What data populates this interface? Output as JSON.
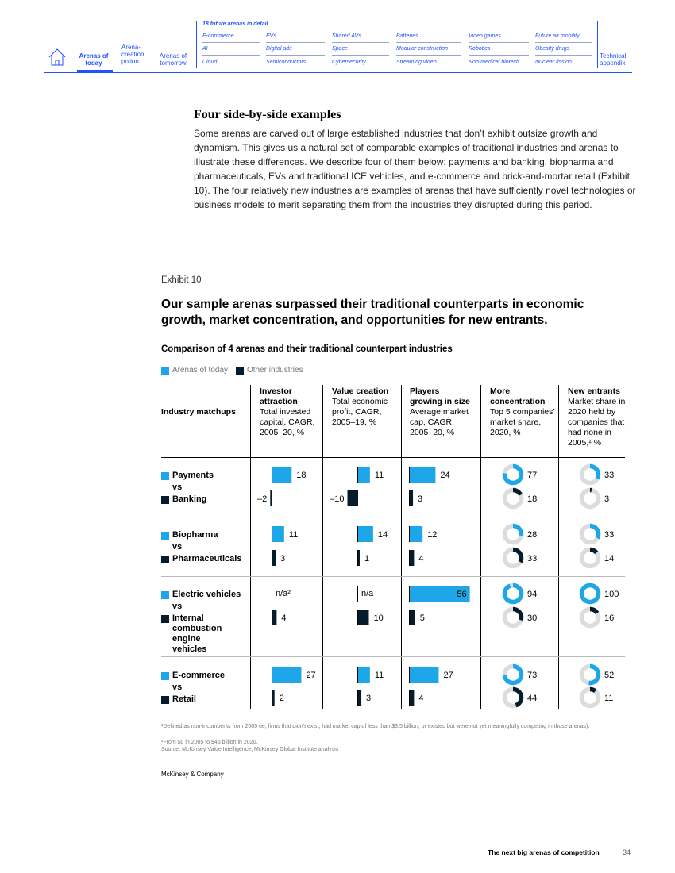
{
  "nav": {
    "home_icon": "home-icon",
    "arenas_today": "Arenas of today",
    "arena_creation": "Arena-creation potion",
    "arenas_tomorrow": "Arenas of tomorrow",
    "future_header": "18 future arenas in detail",
    "future_arenas": [
      [
        "E-commerce",
        "EVs",
        "Shared AVs",
        "Batteries",
        "Video games",
        "Future air mobility"
      ],
      [
        "AI",
        "Digital ads",
        "Space",
        "Modular construction",
        "Robotics",
        "Obesity drugs"
      ],
      [
        "Cloud",
        "Semiconductors",
        "Cybersecurity",
        "Streaming video",
        "Non-medical biotech",
        "Nuclear fission"
      ]
    ],
    "technical": "Technical appendix"
  },
  "section": {
    "title": "Four side-by-side examples",
    "body": "Some arenas are carved out of large established industries that don’t exhibit outsize growth and dynamism. This gives us a natural set of comparable examples of traditional industries and arenas to illustrate these differences. We describe four of them below: payments and banking, biopharma and pharmaceuticals, EVs and traditional ICE vehicles, and e-commerce and brick-and-mortar retail (Exhibit 10). The four relatively new industries are examples of arenas that have sufficiently novel technologies or business models to merit separating them from the industries they disrupted during this period."
  },
  "exhibit": {
    "label": "Exhibit 10",
    "title": "Our sample arenas surpassed their traditional counterparts in economic growth, market concentration, and opportunities for new entrants.",
    "subtitle": "Comparison of 4 arenas and their traditional counterpart industries"
  },
  "legend": [
    {
      "label": "Arenas of today",
      "color": "#1ea7e8"
    },
    {
      "label": "Other industries",
      "color": "#051c2c"
    }
  ],
  "columns": {
    "industry": "Industry matchups",
    "investor": {
      "bold": "Investor attraction",
      "rest": "Total invested capital, CAGR, 2005–20, %"
    },
    "value": {
      "bold": "Value creation",
      "rest": "Total economic profit, CAGR, 2005–19, %"
    },
    "players": {
      "bold": "Players growing in size",
      "rest": "Average market cap, CAGR, 2005–20, %"
    },
    "concentration": {
      "bold": "More concentration",
      "rest": "Top 5 companies’ market share, 2020, %"
    },
    "entrants": {
      "bold": "New entrants",
      "rest": "Market share in 2020 held by companies that had none in 2005,¹ %"
    }
  },
  "chart_data": {
    "type": "bar",
    "title": "Comparison of 4 arenas and their traditional counterpart industries",
    "metrics": [
      "Investor attraction",
      "Value creation",
      "Players growing in size",
      "More concentration",
      "New entrants"
    ],
    "rows": [
      {
        "arena": "Payments",
        "vs": "vs",
        "other": "Banking",
        "investor": [
          18,
          -2
        ],
        "value": [
          11,
          -10
        ],
        "players": [
          24,
          3
        ],
        "concentration": [
          77,
          18
        ],
        "entrants": [
          33,
          3
        ]
      },
      {
        "arena": "Biopharma",
        "vs": "vs",
        "other": "Pharmaceuticals",
        "investor": [
          11,
          3
        ],
        "value": [
          14,
          1
        ],
        "players": [
          12,
          4
        ],
        "concentration": [
          28,
          33
        ],
        "entrants": [
          33,
          14
        ]
      },
      {
        "arena": "Electric vehicles",
        "vs": "vs",
        "other": "Internal combustion engine vehicles",
        "investor": [
          null,
          4
        ],
        "value": [
          null,
          10
        ],
        "players": [
          56,
          5
        ],
        "concentration": [
          94,
          30
        ],
        "entrants": [
          100,
          16
        ]
      },
      {
        "arena": "E-commerce",
        "vs": "vs",
        "other": "Retail",
        "investor": [
          27,
          2
        ],
        "value": [
          11,
          3
        ],
        "players": [
          27,
          4
        ],
        "concentration": [
          73,
          44
        ],
        "entrants": [
          52,
          11
        ]
      }
    ],
    "na_label_investor": "n/a²",
    "na_label_value": "n/a",
    "colors": {
      "arena": "#1ea7e8",
      "other": "#051c2c",
      "ring_bg": "#dcdcdc"
    }
  },
  "footnotes": {
    "f1": "¹Defined as non-incumbents from 2005 (ie, firms that didn’t exist, had market cap of less than $3.5 billion, or existed but were not yet meaningfully competing in those arenas).",
    "f2": "²From $0 in 2005 to $46 billion in 2020.",
    "source": "Source: McKinsey Value Intelligence; McKinsey Global Institute analysis"
  },
  "company": "McKinsey & Company",
  "footer": {
    "title": "The next big arenas of competition",
    "page": "34"
  }
}
